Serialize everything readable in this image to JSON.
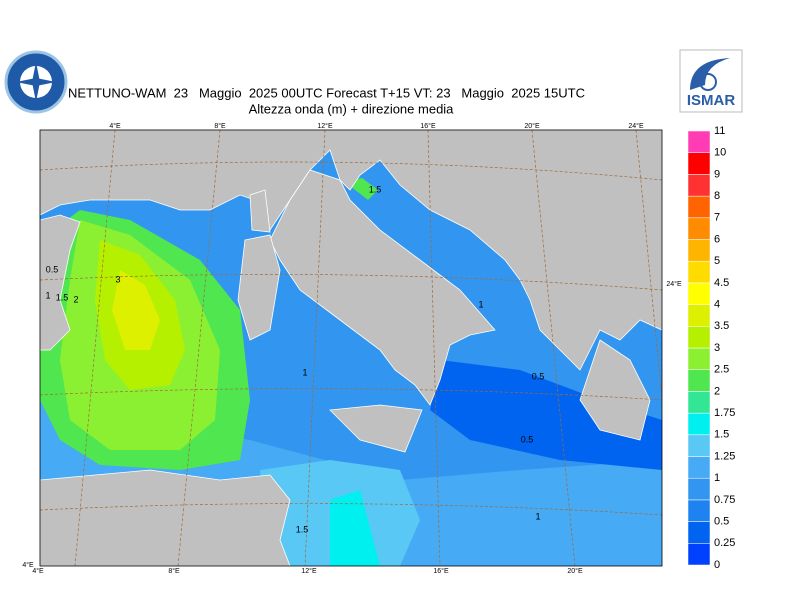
{
  "header": {
    "title": "NETTUNO-WAM  23   Maggio  2025 00UTC Forecast T+15 VT: 23   Maggio  2025 15UTC",
    "subtitle": "Altezza onda (m) + direzione media",
    "logo_right": "ISMAR"
  },
  "map": {
    "lon_top": [
      "4°E",
      "8°E",
      "12°E",
      "16°E",
      "20°E",
      "24°E"
    ],
    "lon_bottom": [
      "4°E",
      "8°E",
      "12°E",
      "16°E",
      "20°E"
    ],
    "lon_corner": "4°E",
    "lon_right": "24°E",
    "contour_labels": [
      3,
      2,
      1.5,
      1,
      0.5,
      1.5,
      1,
      0.5,
      0.5,
      1,
      1.5,
      1
    ]
  },
  "colorbar": {
    "levels": [
      0,
      0.25,
      0.5,
      0.75,
      1,
      1.25,
      1.5,
      1.75,
      2,
      2.5,
      3,
      3.5,
      4,
      4.5,
      5,
      6,
      7,
      8,
      9,
      10,
      11
    ],
    "colors": [
      "#0040ff",
      "#0064f0",
      "#1e82f0",
      "#3296f0",
      "#46aaf5",
      "#5ac8f5",
      "#00f0f0",
      "#32e696",
      "#50e650",
      "#8cf032",
      "#b4f000",
      "#dcf000",
      "#ffff00",
      "#ffdc00",
      "#ffb400",
      "#ff8c00",
      "#ff6400",
      "#ff3232",
      "#ff0000",
      "#ff3cb4"
    ]
  }
}
